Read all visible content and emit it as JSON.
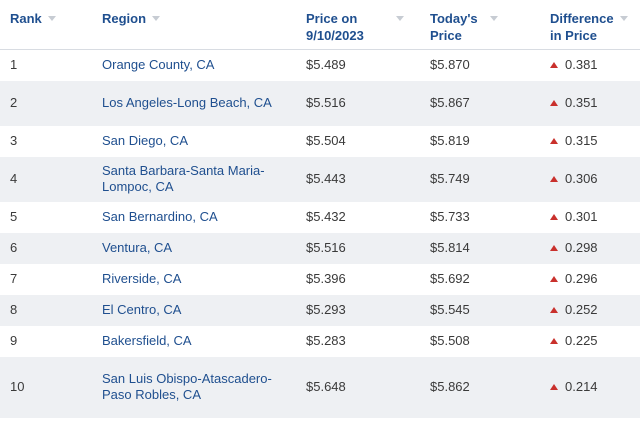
{
  "colors": {
    "header_text": "#1f4f8f",
    "link_text": "#1f4f8f",
    "up_arrow": "#c9302c",
    "row_alt": "#eef0f3"
  },
  "headers": {
    "rank": "Rank",
    "region": "Region",
    "price_then": "Price on 9/10/2023",
    "price_today": "Today's Price",
    "difference": "Difference in Price"
  },
  "rows": [
    {
      "rank": "1",
      "region": "Orange County, CA",
      "price_then": "$5.489",
      "price_today": "$5.870",
      "difference": "0.381"
    },
    {
      "rank": "2",
      "region": "Los Angeles-Long Beach, CA",
      "price_then": "$5.516",
      "price_today": "$5.867",
      "difference": "0.351"
    },
    {
      "rank": "3",
      "region": "San Diego, CA",
      "price_then": "$5.504",
      "price_today": "$5.819",
      "difference": "0.315"
    },
    {
      "rank": "4",
      "region": "Santa Barbara-Santa Maria-Lompoc, CA",
      "price_then": "$5.443",
      "price_today": "$5.749",
      "difference": "0.306"
    },
    {
      "rank": "5",
      "region": "San Bernardino, CA",
      "price_then": "$5.432",
      "price_today": "$5.733",
      "difference": "0.301"
    },
    {
      "rank": "6",
      "region": "Ventura, CA",
      "price_then": "$5.516",
      "price_today": "$5.814",
      "difference": "0.298"
    },
    {
      "rank": "7",
      "region": "Riverside, CA",
      "price_then": "$5.396",
      "price_today": "$5.692",
      "difference": "0.296"
    },
    {
      "rank": "8",
      "region": "El Centro, CA",
      "price_then": "$5.293",
      "price_today": "$5.545",
      "difference": "0.252"
    },
    {
      "rank": "9",
      "region": "Bakersfield, CA",
      "price_then": "$5.283",
      "price_today": "$5.508",
      "difference": "0.225"
    },
    {
      "rank": "10",
      "region": "San Luis Obispo-Atascadero-Paso Robles, CA",
      "price_then": "$5.648",
      "price_today": "$5.862",
      "difference": "0.214"
    }
  ],
  "icons": {
    "sort": "sort-caret-down-icon",
    "increase": "up-triangle-icon"
  }
}
